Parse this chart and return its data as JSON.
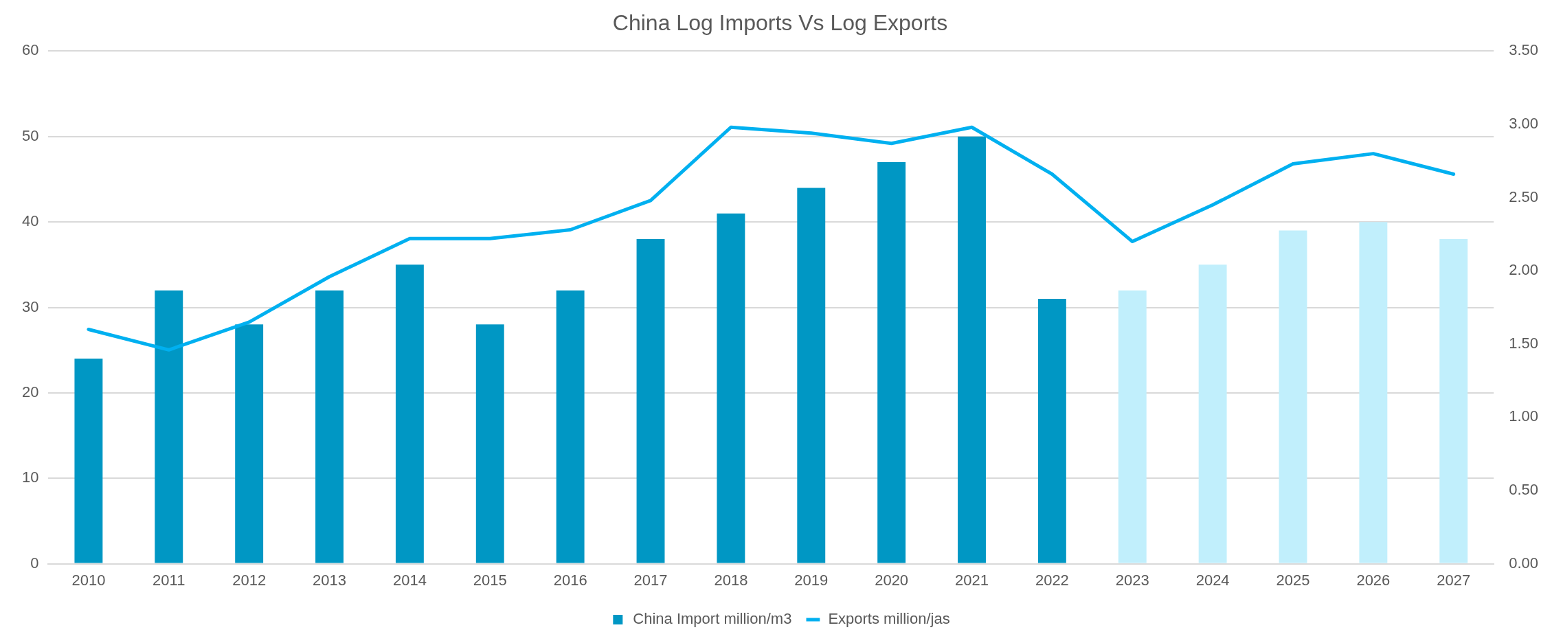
{
  "chart_data": {
    "type": "bar",
    "title": "China Log Imports Vs Log Exports",
    "categories": [
      "2010",
      "2011",
      "2012",
      "2013",
      "2014",
      "2015",
      "2016",
      "2017",
      "2018",
      "2019",
      "2020",
      "2021",
      "2022",
      "2023",
      "2024",
      "2025",
      "2026",
      "2027"
    ],
    "series": [
      {
        "name": "China Import million/m3",
        "color": "#0097c4",
        "colors": [
          "#0097c4",
          "#0097c4",
          "#0097c4",
          "#0097c4",
          "#0097c4",
          "#0097c4",
          "#0097c4",
          "#0097c4",
          "#0097c4",
          "#0097c4",
          "#0097c4",
          "#0097c4",
          "#0097c4",
          "#c1effc",
          "#c1effc",
          "#c1effc",
          "#c1effc",
          "#c1effc"
        ],
        "values": [
          24,
          32,
          28,
          32,
          35,
          28,
          32,
          38,
          41,
          44,
          47,
          50,
          31,
          32,
          35,
          39,
          40,
          38
        ]
      },
      {
        "name": "Exports million/jas",
        "type": "line",
        "axis": "y2",
        "color": "#00b0f0",
        "values": [
          1.6,
          1.46,
          1.65,
          1.96,
          2.22,
          2.22,
          2.28,
          2.48,
          2.98,
          2.94,
          2.87,
          2.98,
          2.66,
          2.2,
          2.45,
          2.73,
          2.8,
          2.66
        ]
      }
    ],
    "ylim": [
      0,
      60
    ],
    "yticks": [
      0,
      10,
      20,
      30,
      40,
      50,
      60
    ],
    "y2lim": [
      0,
      3.5
    ],
    "y2ticks": [
      {
        "value": 0,
        "label": "0.00"
      },
      {
        "value": 0.5,
        "label": "0.50"
      },
      {
        "value": 1,
        "label": "1.00"
      },
      {
        "value": 1.5,
        "label": "1.50"
      },
      {
        "value": 2,
        "label": "2.00"
      },
      {
        "value": 2.5,
        "label": "2.50"
      },
      {
        "value": 3,
        "label": "3.00"
      },
      {
        "value": 3.5,
        "label": "3.50"
      }
    ],
    "grid": "y",
    "legend": "bottom",
    "marker": "none",
    "line_style": "solid"
  }
}
